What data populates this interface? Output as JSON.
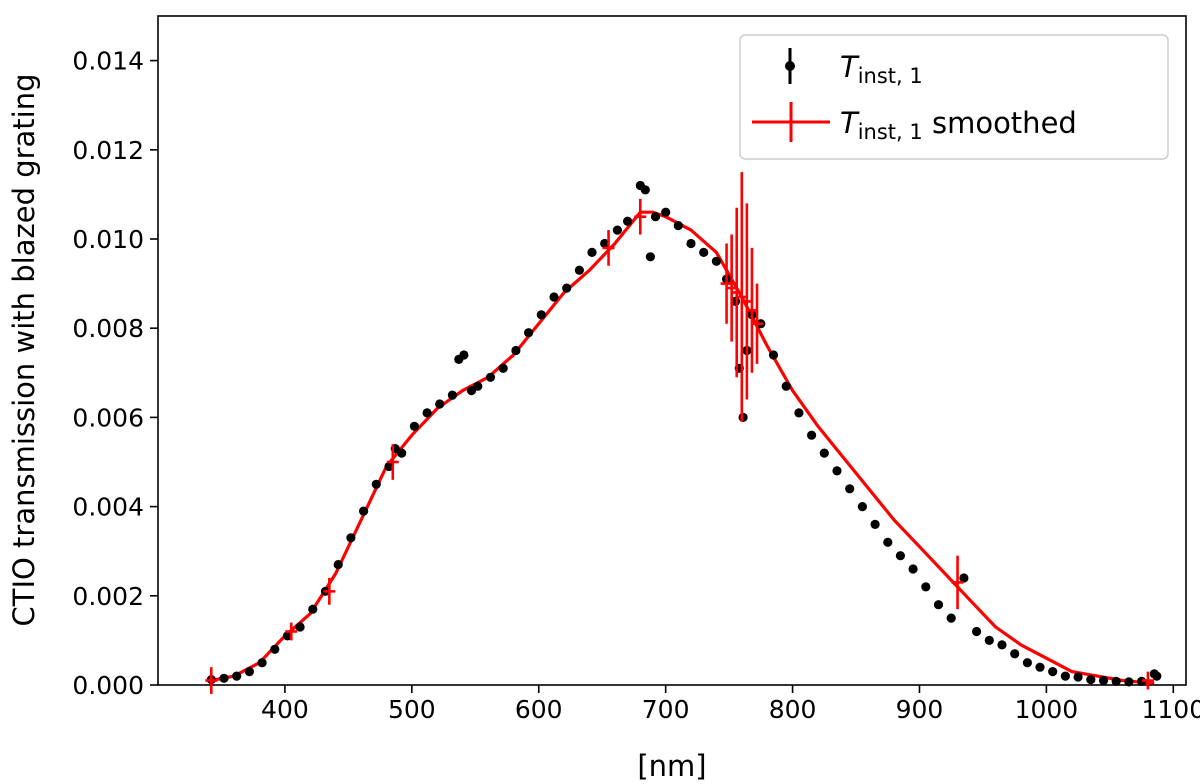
{
  "chart_data": {
    "type": "scatter",
    "title": "",
    "xlabel": "[nm]",
    "ylabel": "CTIO transmission with blazed grating",
    "xlim": [
      300,
      1110
    ],
    "ylim": [
      0,
      0.015
    ],
    "xticks": [
      400,
      500,
      600,
      700,
      800,
      900,
      1000,
      1100
    ],
    "yticks": [
      0.0,
      0.002,
      0.004,
      0.006,
      0.008,
      0.01,
      0.012,
      0.014
    ],
    "xtick_labels": [
      "400",
      "500",
      "600",
      "700",
      "800",
      "900",
      "1000",
      "1100"
    ],
    "ytick_labels": [
      "0.000",
      "0.002",
      "0.004",
      "0.006",
      "0.008",
      "0.010",
      "0.012",
      "0.014"
    ],
    "legend": {
      "location": "top-right",
      "entries": [
        {
          "symbol": "T",
          "subscript": "inst, 1",
          "suffix": "",
          "color": "#000000",
          "marker": "dot-errorbar"
        },
        {
          "symbol": "T",
          "subscript": "inst, 1",
          "suffix": " smoothed",
          "color": "#ff0000",
          "marker": "line-errorbar"
        }
      ]
    },
    "series": [
      {
        "name": "T_inst,1",
        "color": "#000000",
        "style": "points",
        "x": [
          342,
          352,
          362,
          372,
          382,
          392,
          402,
          412,
          422,
          432,
          442,
          452,
          462,
          472,
          482,
          487,
          492,
          502,
          512,
          522,
          532,
          537,
          541,
          547,
          552,
          562,
          572,
          582,
          592,
          602,
          612,
          622,
          632,
          642,
          652,
          662,
          670,
          680,
          684,
          688,
          692,
          700,
          710,
          720,
          730,
          740,
          748,
          755,
          758,
          761,
          764,
          768,
          775,
          785,
          795,
          805,
          815,
          825,
          835,
          845,
          855,
          865,
          875,
          885,
          895,
          905,
          915,
          925,
          935,
          945,
          955,
          965,
          975,
          985,
          995,
          1005,
          1015,
          1025,
          1035,
          1045,
          1055,
          1065,
          1075,
          1085,
          1087
        ],
        "y": [
          0.00012,
          0.00015,
          0.0002,
          0.0003,
          0.0005,
          0.0008,
          0.0011,
          0.0013,
          0.0017,
          0.0021,
          0.0027,
          0.0033,
          0.0039,
          0.0045,
          0.0049,
          0.0053,
          0.0052,
          0.0058,
          0.0061,
          0.0063,
          0.0065,
          0.0073,
          0.0074,
          0.0066,
          0.0067,
          0.0069,
          0.0071,
          0.0075,
          0.0079,
          0.0083,
          0.0087,
          0.0089,
          0.0093,
          0.0097,
          0.0099,
          0.0102,
          0.0104,
          0.0112,
          0.0111,
          0.0096,
          0.0105,
          0.0106,
          0.0103,
          0.0099,
          0.0097,
          0.0095,
          0.0091,
          0.0086,
          0.0071,
          0.006,
          0.0075,
          0.0083,
          0.0081,
          0.0074,
          0.0067,
          0.0061,
          0.0056,
          0.0052,
          0.0048,
          0.0044,
          0.004,
          0.0036,
          0.0032,
          0.0029,
          0.0026,
          0.0022,
          0.0018,
          0.0015,
          0.0024,
          0.0012,
          0.001,
          0.0009,
          0.0007,
          0.0005,
          0.0004,
          0.0003,
          0.0002,
          0.00018,
          0.00012,
          0.0001,
          8e-05,
          7e-05,
          8e-05,
          0.00025,
          0.0002
        ]
      },
      {
        "name": "T_inst,1 smoothed",
        "color": "#ff0000",
        "style": "line",
        "x": [
          342,
          360,
          380,
          400,
          420,
          440,
          460,
          480,
          500,
          520,
          540,
          560,
          580,
          600,
          620,
          640,
          660,
          680,
          690,
          700,
          720,
          740,
          760,
          780,
          800,
          820,
          840,
          860,
          880,
          900,
          920,
          940,
          960,
          980,
          1000,
          1020,
          1040,
          1060,
          1080,
          1085
        ],
        "y": [
          0.0001,
          0.0002,
          0.0005,
          0.0011,
          0.0016,
          0.0025,
          0.0037,
          0.0049,
          0.0056,
          0.0062,
          0.0066,
          0.0069,
          0.0074,
          0.0081,
          0.0088,
          0.0093,
          0.0099,
          0.0106,
          0.0106,
          0.0105,
          0.0102,
          0.0097,
          0.0087,
          0.0076,
          0.0066,
          0.0058,
          0.0051,
          0.0044,
          0.0037,
          0.0031,
          0.0025,
          0.0019,
          0.0013,
          0.0009,
          0.0006,
          0.0003,
          0.0002,
          0.0001,
          5e-05,
          5e-05
        ]
      }
    ],
    "error_bars": {
      "color": "#ff0000",
      "points": [
        {
          "x": 342,
          "y": 0.0001,
          "err": 0.0003
        },
        {
          "x": 405,
          "y": 0.0012,
          "err": 0.0002
        },
        {
          "x": 435,
          "y": 0.0021,
          "err": 0.0003
        },
        {
          "x": 485,
          "y": 0.005,
          "err": 0.0004
        },
        {
          "x": 655,
          "y": 0.0098,
          "err": 0.0004
        },
        {
          "x": 680,
          "y": 0.0105,
          "err": 0.0004
        },
        {
          "x": 748,
          "y": 0.009,
          "err": 0.0009
        },
        {
          "x": 752,
          "y": 0.0089,
          "err": 0.0012
        },
        {
          "x": 756,
          "y": 0.0088,
          "err": 0.0019
        },
        {
          "x": 760,
          "y": 0.0087,
          "err": 0.0028
        },
        {
          "x": 764,
          "y": 0.0086,
          "err": 0.0022
        },
        {
          "x": 768,
          "y": 0.0084,
          "err": 0.0014
        },
        {
          "x": 772,
          "y": 0.0081,
          "err": 0.0009
        },
        {
          "x": 930,
          "y": 0.0023,
          "err": 0.0006
        },
        {
          "x": 1080,
          "y": 0.0001,
          "err": 0.0002
        }
      ]
    }
  }
}
